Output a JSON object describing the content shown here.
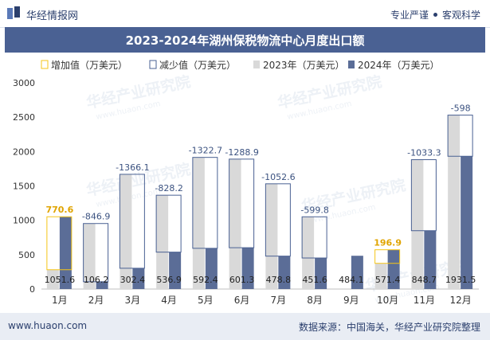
{
  "header": {
    "site_name": "华经情报网",
    "slogan_left": "专业严谨",
    "slogan_right": "客观科学"
  },
  "watermark": {
    "text": "华经产业研究院",
    "url": "www.huaon.com"
  },
  "footer": {
    "url": "www.huaon.com",
    "source": "数据来源：中国海关，华经产业研究院整理"
  },
  "colors": {
    "title_bg": "#4a6193",
    "bar_2023": "#d9d9d9",
    "bar_2024": "#5b6d97",
    "increase_outline": "#f5c518",
    "decrease_outline": "#4a6193",
    "increase_label": "#e0a400",
    "decrease_label": "#3b5280"
  },
  "chart_data": {
    "type": "bar",
    "title": "2023-2024年湖州保税物流中心月度出口额",
    "categories": [
      "1月",
      "2月",
      "3月",
      "4月",
      "5月",
      "6月",
      "7月",
      "8月",
      "9月",
      "10月",
      "11月",
      "12月"
    ],
    "series": [
      {
        "name": "2023年（万美元）",
        "values": [
          281,
          953,
          1669,
          1365,
          1915,
          1890,
          1531,
          1051,
          null,
          374,
          1882,
          2530
        ]
      },
      {
        "name": "2024年（万美元）",
        "values": [
          1051.6,
          106.2,
          302.4,
          536.9,
          592.4,
          601.3,
          478.8,
          451.6,
          484.1,
          571.4,
          848.7,
          1931.5
        ]
      }
    ],
    "change_series": [
      {
        "name": "增加值（万美元）",
        "type": "increase"
      },
      {
        "name": "减少值（万美元）",
        "type": "decrease"
      }
    ],
    "changes": [
      "770.6",
      "-846.9",
      "-1366.1",
      "-828.2",
      "-1322.7",
      "-1288.9",
      "-1052.6",
      "-599.8",
      null,
      "196.9",
      "-1033.3",
      "-598"
    ],
    "value_labels": [
      "1051.6",
      "106.2",
      "302.4",
      "536.9",
      "592.4",
      "601.3",
      "478.8",
      "451.6",
      "484.1",
      "571.4",
      "848.7",
      "1931.5"
    ],
    "yticks": [
      "0",
      "500",
      "1000",
      "1500",
      "2000",
      "2500",
      "3000"
    ],
    "ylim": [
      0,
      3000
    ],
    "grid": false,
    "legend_position": "top"
  }
}
